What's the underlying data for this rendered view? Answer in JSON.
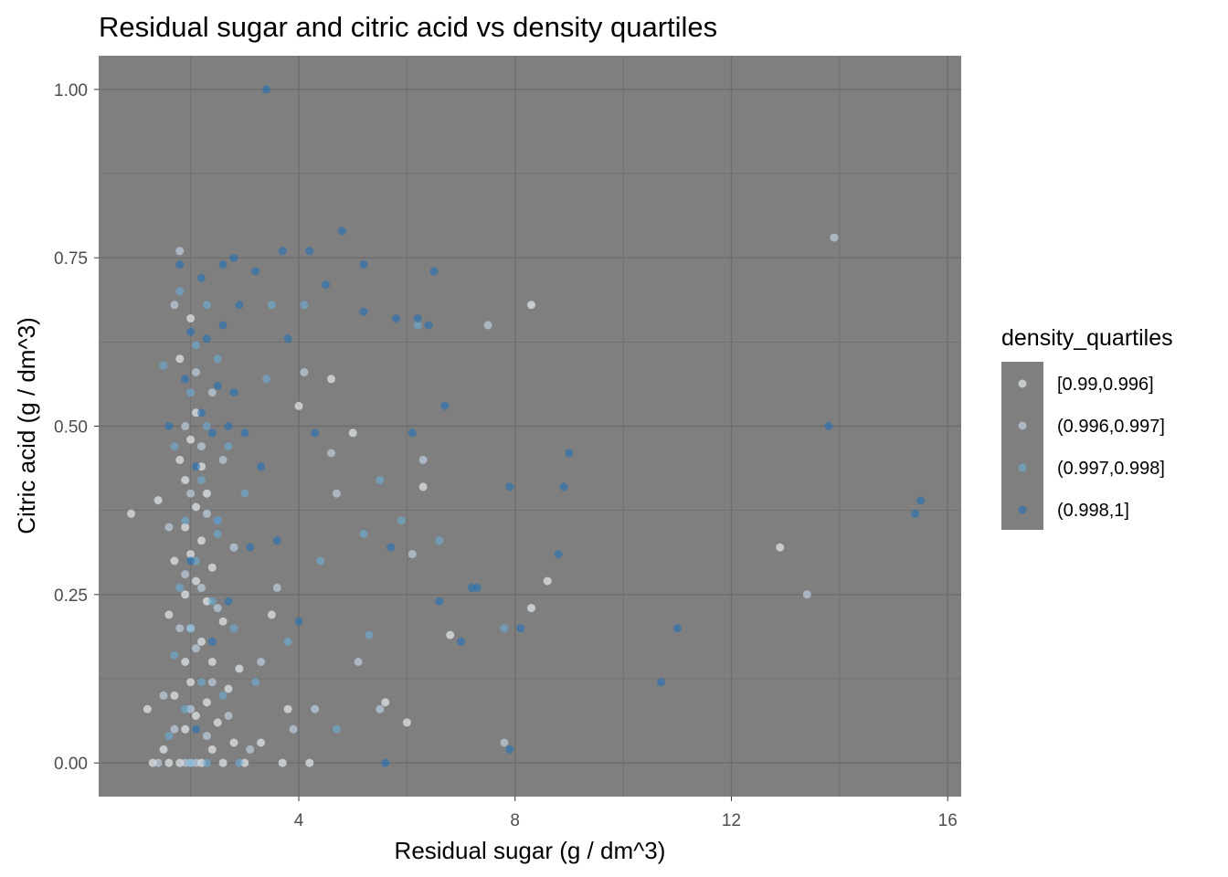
{
  "chart_data": {
    "type": "scatter",
    "title": "Residual sugar and citric acid vs density quartiles",
    "xlabel": "Residual sugar (g / dm^3)",
    "ylabel": "Citric acid (g / dm^3)",
    "xlim": [
      0.3,
      16.25
    ],
    "ylim": [
      -0.05,
      1.05
    ],
    "x_ticks": [
      4,
      8,
      12,
      16
    ],
    "x_tick_labels": [
      "4",
      "8",
      "12",
      "16"
    ],
    "y_ticks": [
      0,
      0.25,
      0.5,
      0.75,
      1.0
    ],
    "y_tick_labels": [
      "0.00",
      "0.25",
      "0.50",
      "0.75",
      "1.00"
    ],
    "grid": true,
    "panel_background": "#7f7f7f",
    "grid_color": "#6e6e6e",
    "point_alpha": 0.6,
    "legend": {
      "title": "density_quartiles",
      "placement": "right",
      "entries": [
        {
          "label": "[0.99,0.996]",
          "color": "#f7fbff"
        },
        {
          "label": "(0.996,0.997]",
          "color": "#c6dbef"
        },
        {
          "label": "(0.997,0.998]",
          "color": "#6baed6"
        },
        {
          "label": "(0.998,1]",
          "color": "#2171b5"
        }
      ]
    },
    "series": [
      {
        "name": "[0.99,0.996]",
        "color": "#f7fbff",
        "points": [
          [
            0.9,
            0.37
          ],
          [
            1.2,
            0.08
          ],
          [
            1.3,
            0.0
          ],
          [
            1.4,
            0.39
          ],
          [
            1.5,
            0.02
          ],
          [
            1.6,
            0.22
          ],
          [
            1.6,
            0.0
          ],
          [
            1.7,
            0.1
          ],
          [
            1.7,
            0.3
          ],
          [
            1.8,
            0.0
          ],
          [
            1.8,
            0.45
          ],
          [
            1.8,
            0.6
          ],
          [
            1.9,
            0.05
          ],
          [
            1.9,
            0.15
          ],
          [
            1.9,
            0.25
          ],
          [
            1.9,
            0.35
          ],
          [
            1.9,
            0.42
          ],
          [
            2.0,
            0.0
          ],
          [
            2.0,
            0.12
          ],
          [
            2.0,
            0.2
          ],
          [
            2.0,
            0.31
          ],
          [
            2.0,
            0.48
          ],
          [
            2.0,
            0.66
          ],
          [
            2.1,
            0.07
          ],
          [
            2.1,
            0.27
          ],
          [
            2.1,
            0.38
          ],
          [
            2.1,
            0.52
          ],
          [
            2.2,
            0.0
          ],
          [
            2.2,
            0.18
          ],
          [
            2.2,
            0.33
          ],
          [
            2.2,
            0.44
          ],
          [
            2.3,
            0.09
          ],
          [
            2.3,
            0.24
          ],
          [
            2.3,
            0.4
          ],
          [
            2.4,
            0.02
          ],
          [
            2.4,
            0.15
          ],
          [
            2.4,
            0.29
          ],
          [
            2.5,
            0.06
          ],
          [
            2.5,
            0.36
          ],
          [
            2.6,
            0.0
          ],
          [
            2.6,
            0.21
          ],
          [
            2.7,
            0.11
          ],
          [
            2.8,
            0.03
          ],
          [
            2.9,
            0.14
          ],
          [
            3.0,
            0.0
          ],
          [
            3.3,
            0.03
          ],
          [
            3.5,
            0.22
          ],
          [
            3.7,
            0.0
          ],
          [
            3.8,
            0.08
          ],
          [
            4.0,
            0.53
          ],
          [
            4.2,
            0.0
          ],
          [
            4.6,
            0.57
          ],
          [
            5.0,
            0.49
          ],
          [
            5.6,
            0.09
          ],
          [
            6.0,
            0.06
          ],
          [
            6.3,
            0.41
          ],
          [
            6.8,
            0.19
          ],
          [
            8.3,
            0.68
          ],
          [
            8.3,
            0.23
          ],
          [
            8.6,
            0.27
          ],
          [
            12.9,
            0.32
          ]
        ]
      },
      {
        "name": "(0.996,0.997]",
        "color": "#c6dbef",
        "points": [
          [
            1.4,
            0.0
          ],
          [
            1.5,
            0.1
          ],
          [
            1.6,
            0.35
          ],
          [
            1.7,
            0.68
          ],
          [
            1.7,
            0.05
          ],
          [
            1.8,
            0.76
          ],
          [
            1.8,
            0.2
          ],
          [
            1.9,
            0.0
          ],
          [
            1.9,
            0.28
          ],
          [
            1.9,
            0.5
          ],
          [
            2.0,
            0.08
          ],
          [
            2.0,
            0.4
          ],
          [
            2.1,
            0.0
          ],
          [
            2.1,
            0.17
          ],
          [
            2.1,
            0.58
          ],
          [
            2.2,
            0.26
          ],
          [
            2.2,
            0.47
          ],
          [
            2.3,
            0.04
          ],
          [
            2.3,
            0.37
          ],
          [
            2.4,
            0.12
          ],
          [
            2.4,
            0.55
          ],
          [
            2.5,
            0.23
          ],
          [
            2.6,
            0.45
          ],
          [
            2.7,
            0.07
          ],
          [
            2.8,
            0.32
          ],
          [
            3.1,
            0.02
          ],
          [
            3.3,
            0.15
          ],
          [
            3.6,
            0.26
          ],
          [
            3.9,
            0.05
          ],
          [
            4.1,
            0.58
          ],
          [
            4.3,
            0.08
          ],
          [
            4.6,
            0.46
          ],
          [
            4.7,
            0.4
          ],
          [
            5.1,
            0.15
          ],
          [
            5.5,
            0.08
          ],
          [
            6.1,
            0.31
          ],
          [
            6.3,
            0.45
          ],
          [
            7.5,
            0.65
          ],
          [
            7.8,
            0.03
          ],
          [
            13.4,
            0.25
          ],
          [
            13.9,
            0.78
          ]
        ]
      },
      {
        "name": "(0.997,0.998]",
        "color": "#6baed6",
        "points": [
          [
            1.5,
            0.59
          ],
          [
            1.6,
            0.04
          ],
          [
            1.7,
            0.16
          ],
          [
            1.7,
            0.47
          ],
          [
            1.8,
            0.26
          ],
          [
            1.8,
            0.7
          ],
          [
            1.9,
            0.08
          ],
          [
            1.9,
            0.36
          ],
          [
            2.0,
            0.0
          ],
          [
            2.0,
            0.55
          ],
          [
            2.0,
            0.2
          ],
          [
            2.1,
            0.3
          ],
          [
            2.1,
            0.62
          ],
          [
            2.2,
            0.12
          ],
          [
            2.2,
            0.42
          ],
          [
            2.3,
            0.0
          ],
          [
            2.3,
            0.5
          ],
          [
            2.3,
            0.68
          ],
          [
            2.4,
            0.24
          ],
          [
            2.5,
            0.34
          ],
          [
            2.5,
            0.6
          ],
          [
            2.6,
            0.1
          ],
          [
            2.7,
            0.47
          ],
          [
            2.8,
            0.2
          ],
          [
            2.9,
            0.0
          ],
          [
            3.0,
            0.4
          ],
          [
            3.2,
            0.12
          ],
          [
            3.4,
            0.57
          ],
          [
            3.5,
            0.68
          ],
          [
            3.8,
            0.18
          ],
          [
            4.1,
            0.68
          ],
          [
            4.4,
            0.3
          ],
          [
            4.7,
            0.05
          ],
          [
            5.2,
            0.34
          ],
          [
            5.3,
            0.19
          ],
          [
            5.5,
            0.42
          ],
          [
            5.9,
            0.36
          ],
          [
            6.2,
            0.65
          ],
          [
            6.6,
            0.33
          ],
          [
            7.8,
            0.2
          ]
        ]
      },
      {
        "name": "(0.998,1]",
        "color": "#2171b5",
        "points": [
          [
            1.6,
            0.5
          ],
          [
            1.8,
            0.74
          ],
          [
            1.9,
            0.57
          ],
          [
            2.0,
            0.3
          ],
          [
            2.0,
            0.64
          ],
          [
            2.1,
            0.44
          ],
          [
            2.1,
            0.05
          ],
          [
            2.2,
            0.52
          ],
          [
            2.2,
            0.72
          ],
          [
            2.3,
            0.63
          ],
          [
            2.4,
            0.49
          ],
          [
            2.4,
            0.18
          ],
          [
            2.5,
            0.56
          ],
          [
            2.5,
            0.36
          ],
          [
            2.6,
            0.74
          ],
          [
            2.6,
            0.65
          ],
          [
            2.7,
            0.5
          ],
          [
            2.7,
            0.24
          ],
          [
            2.8,
            0.75
          ],
          [
            2.8,
            0.55
          ],
          [
            2.9,
            0.68
          ],
          [
            3.0,
            0.49
          ],
          [
            3.1,
            0.32
          ],
          [
            3.2,
            0.73
          ],
          [
            3.3,
            0.44
          ],
          [
            3.4,
            1.0
          ],
          [
            3.6,
            0.33
          ],
          [
            3.7,
            0.76
          ],
          [
            3.8,
            0.63
          ],
          [
            4.0,
            0.21
          ],
          [
            4.2,
            0.76
          ],
          [
            4.3,
            0.49
          ],
          [
            4.5,
            0.71
          ],
          [
            4.8,
            0.79
          ],
          [
            5.2,
            0.74
          ],
          [
            5.2,
            0.67
          ],
          [
            5.6,
            0.0
          ],
          [
            5.7,
            0.32
          ],
          [
            5.8,
            0.66
          ],
          [
            6.1,
            0.49
          ],
          [
            6.2,
            0.66
          ],
          [
            6.4,
            0.65
          ],
          [
            6.5,
            0.73
          ],
          [
            6.6,
            0.24
          ],
          [
            6.7,
            0.53
          ],
          [
            7.0,
            0.18
          ],
          [
            7.2,
            0.26
          ],
          [
            7.3,
            0.26
          ],
          [
            7.9,
            0.02
          ],
          [
            7.9,
            0.41
          ],
          [
            8.1,
            0.2
          ],
          [
            8.8,
            0.31
          ],
          [
            9.0,
            0.46
          ],
          [
            8.9,
            0.41
          ],
          [
            10.7,
            0.12
          ],
          [
            11.0,
            0.2
          ],
          [
            13.8,
            0.5
          ],
          [
            15.4,
            0.37
          ],
          [
            15.5,
            0.39
          ]
        ]
      }
    ]
  }
}
